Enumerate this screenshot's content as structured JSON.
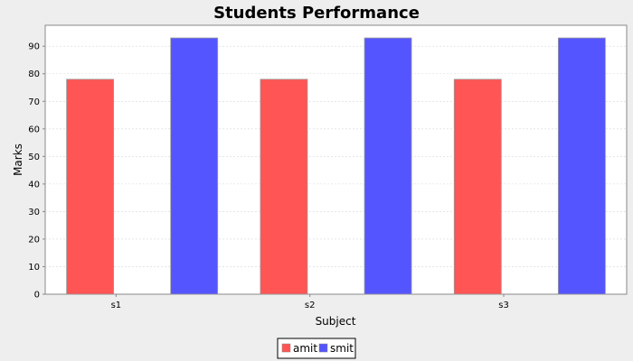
{
  "chart_data": {
    "type": "bar",
    "title": "Students Performance",
    "xlabel": "Subject",
    "ylabel": "Marks",
    "categories": [
      "s1",
      "s2",
      "s3"
    ],
    "series": [
      {
        "name": "amit",
        "values": [
          78,
          78,
          78
        ],
        "color": "#ff5555"
      },
      {
        "name": "smit",
        "values": [
          93,
          93,
          93
        ],
        "color": "#5555ff"
      }
    ],
    "ylim": [
      0,
      97.6
    ],
    "yticks": [
      0,
      10,
      20,
      30,
      40,
      50,
      60,
      70,
      80,
      90
    ],
    "grid": true,
    "legend_position": "bottom"
  }
}
